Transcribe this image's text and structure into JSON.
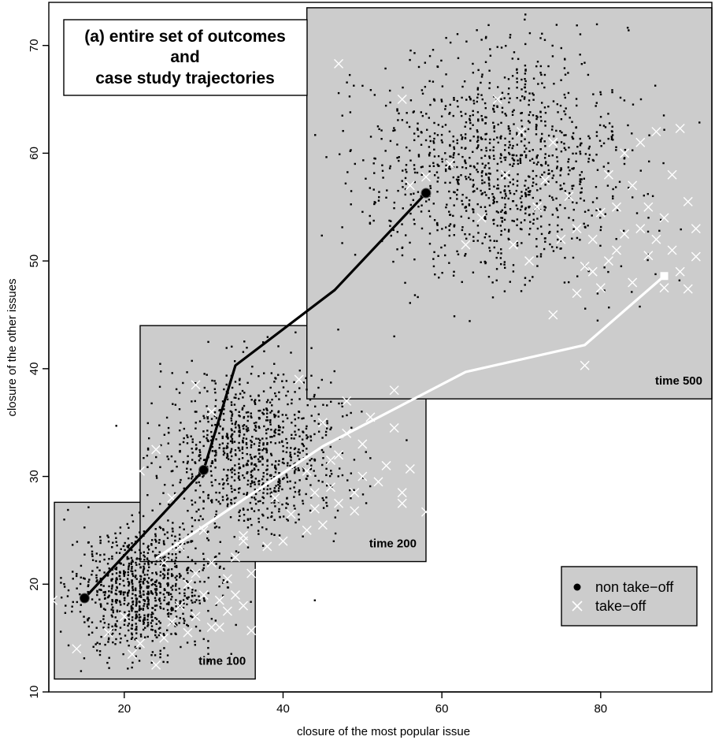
{
  "chart_data": {
    "type": "scatter",
    "title": "(a) entire set of outcomes\nand\ncase study trajectories",
    "title_lines": [
      "(a) entire set of outcomes",
      "and",
      "case study trajectories"
    ],
    "xlabel": "closure of the most popular issue",
    "ylabel": "closure of the other issues",
    "xlim": [
      10.5,
      94
    ],
    "ylim": [
      10,
      74
    ],
    "xticks": [
      20,
      40,
      60,
      80
    ],
    "yticks": [
      10,
      20,
      30,
      40,
      50,
      60,
      70
    ],
    "grid": false,
    "legend": {
      "placement": "bottom-right",
      "entries": [
        {
          "label": "non take−off",
          "marker": "filled-circle",
          "color": "#000000"
        },
        {
          "label": "take−off",
          "marker": "cross",
          "color": "#ffffff"
        }
      ]
    },
    "panels": [
      {
        "label": "time 100",
        "xrange": [
          11.2,
          36.5
        ],
        "yrange": [
          11.2,
          27.6
        ],
        "non_takeoff_cloud": {
          "center": [
            22,
            19.5
          ],
          "spread": [
            4.2,
            3.0
          ],
          "count": 900
        },
        "takeoff_points": [
          [
            11,
            18.5
          ],
          [
            14,
            14
          ],
          [
            18,
            15.5
          ],
          [
            20,
            17
          ],
          [
            21,
            13.5
          ],
          [
            22,
            14.5
          ],
          [
            24,
            12.5
          ],
          [
            25,
            15
          ],
          [
            26,
            16.5
          ],
          [
            27,
            18
          ],
          [
            28,
            20
          ],
          [
            28,
            15.5
          ],
          [
            29,
            17
          ],
          [
            29,
            21
          ],
          [
            30,
            19
          ],
          [
            31,
            16
          ],
          [
            31,
            22
          ],
          [
            32,
            18.5
          ],
          [
            32,
            16
          ],
          [
            33,
            20.5
          ],
          [
            33,
            17.5
          ],
          [
            34,
            19
          ],
          [
            34,
            22.5
          ],
          [
            35,
            24
          ],
          [
            35,
            18
          ],
          [
            36,
            21
          ],
          [
            36,
            15.7
          ],
          [
            25,
            22
          ],
          [
            27,
            23.5
          ],
          [
            30,
            25
          ]
        ]
      },
      {
        "label": "time 200",
        "xrange": [
          22,
          58
        ],
        "yrange": [
          22.1,
          44
        ],
        "non_takeoff_cloud": {
          "center": [
            36,
            32
          ],
          "spread": [
            5.5,
            4.0
          ],
          "count": 1000
        },
        "takeoff_points": [
          [
            22,
            30.5
          ],
          [
            24,
            32.5
          ],
          [
            26,
            28
          ],
          [
            29,
            38.5
          ],
          [
            31,
            36
          ],
          [
            35,
            24.5
          ],
          [
            38,
            23.5
          ],
          [
            40,
            24
          ],
          [
            41,
            26.5
          ],
          [
            42,
            39
          ],
          [
            43,
            25
          ],
          [
            44,
            27
          ],
          [
            44,
            28.5
          ],
          [
            45,
            25.5
          ],
          [
            46,
            29
          ],
          [
            46,
            31.5
          ],
          [
            47,
            27.5
          ],
          [
            48,
            34
          ],
          [
            48,
            37
          ],
          [
            49,
            28.5
          ],
          [
            49,
            26.8
          ],
          [
            50,
            30
          ],
          [
            50,
            33
          ],
          [
            51,
            35.5
          ],
          [
            52,
            29.5
          ],
          [
            53,
            31
          ],
          [
            54,
            38
          ],
          [
            54,
            34.5
          ],
          [
            55,
            27.5
          ],
          [
            55,
            28.5
          ],
          [
            56,
            30.7
          ],
          [
            58,
            26.7
          ],
          [
            47,
            32
          ],
          [
            45,
            35
          ],
          [
            43,
            30.5
          ],
          [
            39,
            28
          ]
        ]
      },
      {
        "label": "time 500",
        "xrange": [
          43,
          94
        ],
        "yrange": [
          37.2,
          73.5
        ],
        "non_takeoff_cloud": {
          "center": [
            67,
            59
          ],
          "spread": [
            8.5,
            5.2
          ],
          "count": 1200
        },
        "takeoff_points": [
          [
            47,
            68.3
          ],
          [
            55,
            65
          ],
          [
            56,
            57
          ],
          [
            58,
            57.8
          ],
          [
            61,
            59
          ],
          [
            63,
            51.5
          ],
          [
            65,
            54
          ],
          [
            67,
            65
          ],
          [
            68,
            58
          ],
          [
            69,
            51.5
          ],
          [
            71,
            50
          ],
          [
            72,
            55
          ],
          [
            73,
            57.5
          ],
          [
            74,
            61
          ],
          [
            75,
            52
          ],
          [
            76,
            56
          ],
          [
            77,
            53
          ],
          [
            77,
            47
          ],
          [
            78,
            49.5
          ],
          [
            78,
            40.3
          ],
          [
            79,
            52
          ],
          [
            79,
            49
          ],
          [
            80,
            54.5
          ],
          [
            80,
            47.5
          ],
          [
            81,
            50
          ],
          [
            81,
            58
          ],
          [
            82,
            55
          ],
          [
            82,
            51
          ],
          [
            83,
            52.5
          ],
          [
            83,
            60
          ],
          [
            84,
            48
          ],
          [
            84,
            57
          ],
          [
            85,
            53
          ],
          [
            85,
            61
          ],
          [
            86,
            50.5
          ],
          [
            86,
            55
          ],
          [
            87,
            52
          ],
          [
            87,
            62
          ],
          [
            88,
            47.5
          ],
          [
            88,
            54
          ],
          [
            89,
            51
          ],
          [
            89,
            58
          ],
          [
            90,
            62.3
          ],
          [
            90,
            49
          ],
          [
            91,
            55.5
          ],
          [
            91,
            47.4
          ],
          [
            92,
            53
          ],
          [
            92,
            50.4
          ],
          [
            70,
            62
          ],
          [
            74,
            45
          ]
        ]
      }
    ],
    "scattered_outliers": [
      [
        19,
        34.7
      ],
      [
        44,
        18.5
      ],
      [
        29,
        28.7
      ],
      [
        54,
        43
      ]
    ],
    "series": [
      {
        "name": "non take−off",
        "line_color": "#000000",
        "x": [
          15,
          30,
          34,
          46.5,
          58
        ],
        "y": [
          18.7,
          30.6,
          40.3,
          47.3,
          56.3
        ],
        "markers_at_index": [
          0,
          1,
          4
        ]
      },
      {
        "name": "take−off",
        "line_color": "#ffffff",
        "x": [
          24,
          45,
          63,
          78,
          88
        ],
        "y": [
          22.4,
          32.8,
          39.7,
          42.2,
          48.6
        ],
        "markers_at_index": [
          4
        ]
      }
    ]
  },
  "colors": {
    "panel_fill": "#cccccc",
    "background": "#ffffff",
    "points": "#000000",
    "takeoff": "#ffffff"
  }
}
